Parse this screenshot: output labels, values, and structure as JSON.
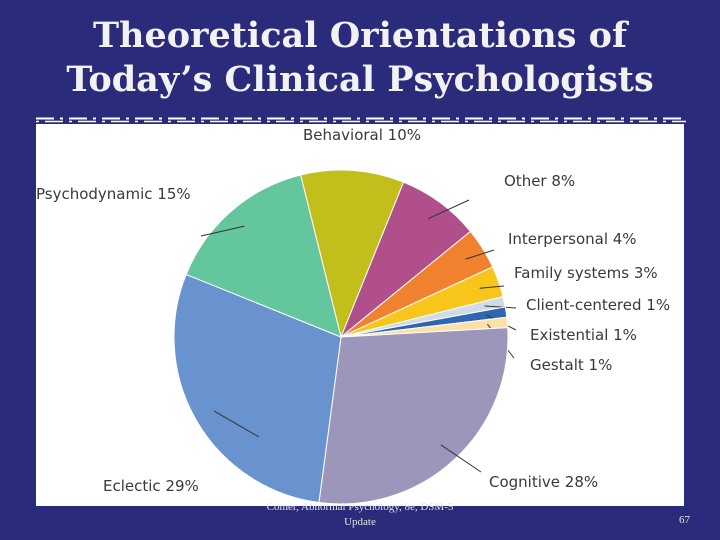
{
  "slide": {
    "title_line1": "Theoretical Orientations of",
    "title_line2": "Today’s Clinical Psychologists",
    "footer_line1": "Comer, Abnormal Psychology, 8e, DSM-5",
    "footer_line2": "Update",
    "page_number": "67"
  },
  "chart_data": {
    "type": "pie",
    "title": "",
    "slices": [
      {
        "label": "Behavioral 10%",
        "value": 10,
        "color": "#c2be1c"
      },
      {
        "label": "Other 8%",
        "value": 8,
        "color": "#b14f8b"
      },
      {
        "label": "Interpersonal 4%",
        "value": 4,
        "color": "#f0822f"
      },
      {
        "label": "Family systems 3%",
        "value": 3,
        "color": "#f8c61a"
      },
      {
        "label": "Client-centered 1%",
        "value": 1,
        "color": "#cfdce8"
      },
      {
        "label": "Existential 1%",
        "value": 1,
        "color": "#2f66b0"
      },
      {
        "label": "Gestalt 1%",
        "value": 1,
        "color": "#fbe0a8"
      },
      {
        "label": "Cognitive 28%",
        "value": 28,
        "color": "#9c96ba"
      },
      {
        "label": "Eclectic 29%",
        "value": 29,
        "color": "#6893cf"
      },
      {
        "label": "Psychodynamic 15%",
        "value": 15,
        "color": "#63c69d"
      }
    ]
  }
}
